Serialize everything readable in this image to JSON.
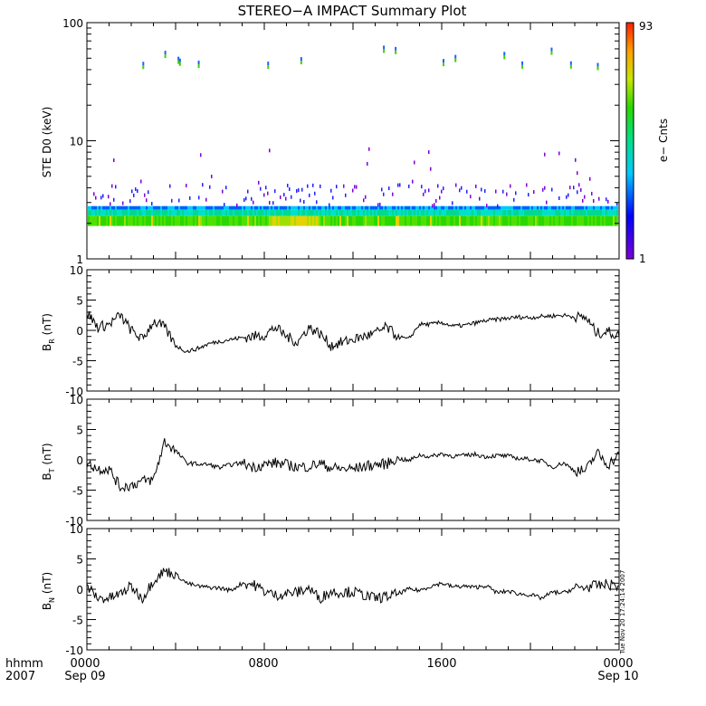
{
  "title": "STEREO−A IMPACT Summary Plot",
  "timestamp": "Tue Nov 20 17:24:14 2007",
  "time_axis": {
    "row1_labels": [
      "hhmm",
      "0000",
      "0800",
      "1600",
      "0000"
    ],
    "row2_labels": [
      "2007",
      "Sep 09",
      "",
      "",
      "Sep 10"
    ]
  },
  "chart_data": [
    {
      "type": "heatmap",
      "ylabel": "STE D0 (keV)",
      "yscale": "log",
      "ylim": [
        1,
        100
      ],
      "ytick_labels": [
        "1",
        "10",
        "100"
      ],
      "x_hours": [
        0,
        24
      ],
      "colorbar": {
        "label": "e− Cnts",
        "min_label": "1",
        "max_label": "93",
        "min": 1,
        "max": 93
      },
      "intense_band_keV": [
        1.9,
        2.7
      ],
      "notes": "counts concentrated near 2 keV throughout the day with sparse higher-energy hits"
    },
    {
      "type": "line",
      "ylabel_main": "B",
      "ylabel_sub": "R",
      "ylabel_unit": " (nT)",
      "ylim": [
        -10,
        10
      ],
      "ytick_labels": [
        "10",
        "5",
        "0",
        "-5",
        "-10"
      ],
      "x": [
        0,
        0.5,
        1,
        1.5,
        2,
        2.5,
        3,
        3.5,
        4,
        4.5,
        5,
        5.5,
        6,
        6.5,
        7,
        7.5,
        8,
        8.5,
        9,
        9.5,
        10,
        10.5,
        11,
        11.5,
        12,
        12.5,
        13,
        13.5,
        14,
        14.5,
        15,
        15.5,
        16,
        16.5,
        17,
        17.5,
        18,
        18.5,
        19,
        19.5,
        20,
        20.5,
        21,
        21.5,
        22,
        22.5,
        23,
        23.5,
        24
      ],
      "values": [
        3,
        0.5,
        1,
        2.5,
        0,
        -1.5,
        1.5,
        0.5,
        -2.5,
        -3.5,
        -3,
        -2.2,
        -1.8,
        -1.5,
        -1.2,
        -1,
        -0.8,
        0.5,
        -1,
        -2,
        0.5,
        -0.5,
        -2.5,
        -2,
        -1.5,
        -1,
        -0.5,
        0.5,
        -1,
        -1.5,
        1,
        1,
        1.3,
        0.7,
        0.8,
        1.2,
        1.6,
        1.8,
        2,
        2.2,
        2.1,
        2.3,
        2.4,
        2.5,
        2.2,
        2.1,
        -0.5,
        -0.2,
        -1
      ]
    },
    {
      "type": "line",
      "ylabel_main": "B",
      "ylabel_sub": "T",
      "ylabel_unit": " (nT)",
      "ylim": [
        -10,
        10
      ],
      "ytick_labels": [
        "10",
        "5",
        "0",
        "-5",
        "-10"
      ],
      "x": [
        0,
        0.5,
        1,
        1.5,
        2,
        2.5,
        3,
        3.5,
        4,
        4.5,
        5,
        5.5,
        6,
        6.5,
        7,
        7.5,
        8,
        8.5,
        9,
        9.5,
        10,
        10.5,
        11,
        11.5,
        12,
        12.5,
        13,
        13.5,
        14,
        14.5,
        15,
        15.5,
        16,
        16.5,
        17,
        17.5,
        18,
        18.5,
        19,
        19.5,
        20,
        20.5,
        21,
        21.5,
        22,
        22.5,
        23,
        23.5,
        24
      ],
      "values": [
        -0.5,
        -1.5,
        -1.5,
        -4.5,
        -4.2,
        -3.5,
        -3.3,
        3,
        1.5,
        -0.5,
        -0.7,
        -0.8,
        -1.3,
        -0.8,
        -0.5,
        -1.2,
        -0.8,
        -0.5,
        -0.8,
        -1.2,
        -1.1,
        -0.6,
        -1.3,
        -1.5,
        -1.5,
        -1.1,
        -0.8,
        -0.7,
        0.3,
        -0.2,
        0.8,
        0.5,
        1,
        0.6,
        0.7,
        0.9,
        0.5,
        0.7,
        0.6,
        0.2,
        0.1,
        -0.2,
        -1.2,
        -0.5,
        -1.8,
        -1.8,
        1.2,
        -0.8,
        0.8
      ]
    },
    {
      "type": "line",
      "ylabel_main": "B",
      "ylabel_sub": "N",
      "ylabel_unit": " (nT)",
      "ylim": [
        -10,
        10
      ],
      "ytick_labels": [
        "10",
        "5",
        "0",
        "-5",
        "-10"
      ],
      "x": [
        0,
        0.5,
        1,
        1.5,
        2,
        2.5,
        3,
        3.5,
        4,
        4.5,
        5,
        5.5,
        6,
        6.5,
        7,
        7.5,
        8,
        8.5,
        9,
        9.5,
        10,
        10.5,
        11,
        11.5,
        12,
        12.5,
        13,
        13.5,
        14,
        14.5,
        15,
        15.5,
        16,
        16.5,
        17,
        17.5,
        18,
        18.5,
        19,
        19.5,
        20,
        20.5,
        21,
        21.5,
        22,
        22.5,
        23,
        23.5,
        24
      ],
      "values": [
        0.5,
        -1.5,
        -1.5,
        -0.8,
        0.5,
        -1.5,
        1.5,
        3,
        2.5,
        1,
        0.5,
        0.3,
        0.2,
        -0.2,
        1,
        0.8,
        -0.3,
        -1,
        -0.7,
        -0.5,
        0.2,
        -1.5,
        -0.4,
        -0.5,
        -0.4,
        -1,
        -1.5,
        -1.2,
        -0.8,
        0,
        -0.2,
        0.5,
        1,
        0.4,
        0.5,
        0.3,
        0.6,
        -0.6,
        -0.3,
        -0.8,
        -0.9,
        -1.5,
        -0.5,
        -0.6,
        0.2,
        0.3,
        0.6,
        0.8,
        0.6
      ]
    }
  ]
}
